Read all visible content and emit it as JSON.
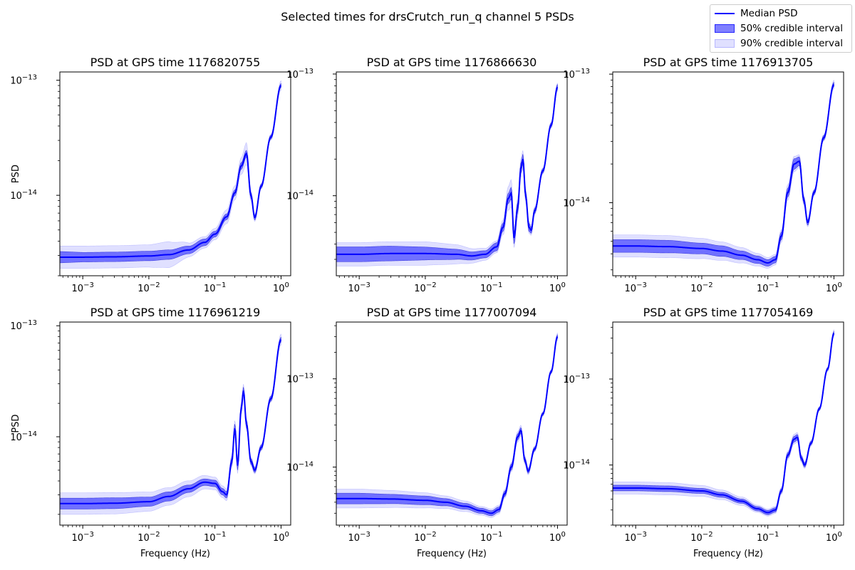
{
  "figure": {
    "suptitle": "Selected times for drsCrutch_run_q channel 5 PSDs"
  },
  "legend": {
    "median_label": "Median PSD",
    "ci50_label": "50% credible interval",
    "ci90_label": "90% credible interval",
    "colors": {
      "median": "#0000ff",
      "ci50": "#0000ff",
      "ci90": "#0000ff"
    }
  },
  "chart_data": [
    {
      "type": "line",
      "title": "PSD at GPS time 1176820755",
      "xlabel": "",
      "ylabel": "PSD",
      "xscale": "log",
      "yscale": "log",
      "xlim": [
        0.00045,
        1.4
      ],
      "ylim": [
        2e-15,
        1.18e-13
      ],
      "xticks": [
        0.001,
        0.01,
        0.1,
        1
      ],
      "xticklabels": [
        "10^-3",
        "10^-2",
        "10^-1",
        "10^0"
      ],
      "yticks": [
        1e-14,
        1e-13
      ],
      "yticklabels": [
        "10^-14",
        "10^-13"
      ],
      "series": [
        {
          "name": "Median PSD",
          "x": [
            0.00045,
            0.001,
            0.003,
            0.01,
            0.02,
            0.04,
            0.07,
            0.1,
            0.15,
            0.2,
            0.25,
            0.3,
            0.35,
            0.4,
            0.5,
            0.7,
            1.0
          ],
          "y": [
            2.9e-15,
            2.9e-15,
            2.92e-15,
            2.97e-15,
            3.05e-15,
            3.35e-15,
            3.9e-15,
            4.6e-15,
            6.5e-15,
            1.05e-14,
            1.8e-14,
            2.3e-14,
            1e-14,
            6.4e-15,
            1.2e-14,
            3.2e-14,
            9e-14
          ]
        }
      ],
      "ci50_factor": [
        1.12,
        1.1,
        1.1,
        1.1,
        1.1,
        1.08,
        1.07,
        1.06,
        1.06,
        1.06,
        1.07,
        1.07,
        1.06,
        1.05,
        1.04,
        1.04,
        1.04
      ],
      "ci90_factor": [
        1.25,
        1.25,
        1.25,
        1.25,
        1.3,
        1.15,
        1.12,
        1.12,
        1.15,
        1.15,
        1.18,
        1.25,
        1.12,
        1.08,
        1.06,
        1.06,
        1.1
      ]
    },
    {
      "type": "line",
      "title": "PSD at GPS time 1176866630",
      "xlabel": "",
      "ylabel": "",
      "xscale": "log",
      "yscale": "log",
      "xlim": [
        0.00045,
        1.4
      ],
      "ylim": [
        2.2e-15,
        1.04e-13
      ],
      "xticks": [
        0.001,
        0.01,
        0.1,
        1
      ],
      "xticklabels": [
        "10^-3",
        "10^-2",
        "10^-1",
        "10^0"
      ],
      "yticks": [
        1e-14,
        1e-13
      ],
      "yticklabels": [
        "10^-14",
        "10^-13"
      ],
      "series": [
        {
          "name": "Median PSD",
          "x": [
            0.00045,
            0.001,
            0.003,
            0.01,
            0.03,
            0.05,
            0.08,
            0.12,
            0.15,
            0.18,
            0.2,
            0.22,
            0.25,
            0.28,
            0.3,
            0.33,
            0.37,
            0.4,
            0.45,
            0.6,
            0.8,
            1.0
          ],
          "y": [
            3.3e-15,
            3.3e-15,
            3.35e-15,
            3.35e-15,
            3.3e-15,
            3.2e-15,
            3.3e-15,
            3.8e-15,
            5.5e-15,
            9.5e-15,
            1.05e-14,
            4.5e-15,
            8e-15,
            1.7e-14,
            2e-14,
            1e-14,
            5.5e-15,
            5.2e-15,
            7.5e-15,
            1.6e-14,
            3.8e-14,
            7.8e-14
          ]
        }
      ],
      "ci50_factor": [
        1.15,
        1.15,
        1.15,
        1.13,
        1.1,
        1.08,
        1.07,
        1.08,
        1.08,
        1.1,
        1.12,
        1.12,
        1.1,
        1.1,
        1.1,
        1.08,
        1.08,
        1.06,
        1.05,
        1.04,
        1.04,
        1.05
      ],
      "ci90_factor": [
        1.25,
        1.25,
        1.25,
        1.25,
        1.2,
        1.15,
        1.12,
        1.12,
        1.15,
        1.25,
        1.3,
        1.2,
        1.2,
        1.2,
        1.18,
        1.15,
        1.12,
        1.1,
        1.08,
        1.06,
        1.06,
        1.08
      ]
    },
    {
      "type": "line",
      "title": "PSD at GPS time 1176913705",
      "xlabel": "",
      "ylabel": "",
      "xscale": "log",
      "yscale": "log",
      "xlim": [
        0.00045,
        1.4
      ],
      "ylim": [
        2.7e-15,
        1.04e-13
      ],
      "xticks": [
        0.001,
        0.01,
        0.1,
        1
      ],
      "xticklabels": [
        "10^-3",
        "10^-2",
        "10^-1",
        "10^0"
      ],
      "yticks": [
        1e-14,
        1e-13
      ],
      "yticklabels": [
        "10^-14",
        "10^-13"
      ],
      "series": [
        {
          "name": "Median PSD",
          "x": [
            0.00045,
            0.001,
            0.003,
            0.01,
            0.02,
            0.04,
            0.07,
            0.1,
            0.13,
            0.16,
            0.2,
            0.25,
            0.3,
            0.35,
            0.4,
            0.5,
            0.7,
            1.0
          ],
          "y": [
            4.6e-15,
            4.6e-15,
            4.55e-15,
            4.4e-15,
            4.2e-15,
            3.9e-15,
            3.6e-15,
            3.4e-15,
            3.6e-15,
            5.5e-15,
            1.2e-14,
            2e-14,
            2.1e-14,
            1.05e-14,
            7e-15,
            1.2e-14,
            3.2e-14,
            8.3e-14
          ]
        }
      ],
      "ci50_factor": [
        1.12,
        1.12,
        1.12,
        1.1,
        1.1,
        1.08,
        1.07,
        1.06,
        1.06,
        1.07,
        1.08,
        1.1,
        1.08,
        1.06,
        1.05,
        1.04,
        1.04,
        1.04
      ],
      "ci90_factor": [
        1.22,
        1.22,
        1.22,
        1.2,
        1.18,
        1.15,
        1.12,
        1.1,
        1.1,
        1.12,
        1.15,
        1.15,
        1.12,
        1.1,
        1.08,
        1.06,
        1.06,
        1.08
      ]
    },
    {
      "type": "line",
      "title": "PSD at GPS time 1176961219",
      "xlabel": "Frequency (Hz)",
      "ylabel": "PSD",
      "xscale": "log",
      "yscale": "log",
      "xlim": [
        0.00045,
        1.4
      ],
      "ylim": [
        1.6e-15,
        1.08e-13
      ],
      "xticks": [
        0.001,
        0.01,
        0.1,
        1
      ],
      "xticklabels": [
        "10^-3",
        "10^-2",
        "10^-1",
        "10^0"
      ],
      "yticks": [
        1e-14,
        1e-13
      ],
      "yticklabels": [
        "10^-14",
        "10^-13"
      ],
      "series": [
        {
          "name": "Median PSD",
          "x": [
            0.00045,
            0.001,
            0.003,
            0.01,
            0.02,
            0.04,
            0.07,
            0.1,
            0.13,
            0.15,
            0.18,
            0.2,
            0.22,
            0.25,
            0.27,
            0.3,
            0.35,
            0.4,
            0.5,
            0.7,
            1.0
          ],
          "y": [
            2.5e-15,
            2.5e-15,
            2.52e-15,
            2.6e-15,
            2.9e-15,
            3.4e-15,
            3.9e-15,
            3.8e-15,
            3.2e-15,
            3e-15,
            6e-15,
            1.2e-14,
            5.5e-15,
            1.8e-14,
            2.6e-14,
            1.3e-14,
            6e-15,
            5e-15,
            8e-15,
            2.2e-14,
            7.5e-14
          ]
        }
      ],
      "ci50_factor": [
        1.12,
        1.12,
        1.12,
        1.1,
        1.1,
        1.08,
        1.07,
        1.07,
        1.07,
        1.07,
        1.08,
        1.1,
        1.1,
        1.08,
        1.08,
        1.08,
        1.06,
        1.05,
        1.05,
        1.05,
        1.05
      ],
      "ci90_factor": [
        1.25,
        1.25,
        1.25,
        1.22,
        1.2,
        1.18,
        1.15,
        1.14,
        1.13,
        1.13,
        1.15,
        1.18,
        1.18,
        1.15,
        1.15,
        1.13,
        1.1,
        1.08,
        1.07,
        1.07,
        1.12
      ]
    },
    {
      "type": "line",
      "title": "PSD at GPS time 1177007094",
      "xlabel": "Frequency (Hz)",
      "ylabel": "",
      "xscale": "log",
      "yscale": "log",
      "xlim": [
        0.00045,
        1.4
      ],
      "ylim": [
        2.2e-15,
        4.4e-13
      ],
      "xticks": [
        0.001,
        0.01,
        0.1,
        1
      ],
      "xticklabels": [
        "10^-3",
        "10^-2",
        "10^-1",
        "10^0"
      ],
      "yticks": [
        1e-14,
        1e-13
      ],
      "yticklabels": [
        "10^-14",
        "10^-13"
      ],
      "series": [
        {
          "name": "Median PSD",
          "x": [
            0.00045,
            0.001,
            0.003,
            0.01,
            0.02,
            0.04,
            0.07,
            0.1,
            0.13,
            0.16,
            0.2,
            0.25,
            0.28,
            0.32,
            0.36,
            0.45,
            0.6,
            0.8,
            1.0
          ],
          "y": [
            4.4e-15,
            4.4e-15,
            4.35e-15,
            4.2e-15,
            4e-15,
            3.6e-15,
            3.2e-15,
            3e-15,
            3.3e-15,
            5e-15,
            1e-14,
            2.2e-14,
            2.6e-14,
            1.2e-14,
            9e-15,
            1.6e-14,
            4e-14,
            1.2e-13,
            3e-13
          ]
        }
      ],
      "ci50_factor": [
        1.15,
        1.15,
        1.13,
        1.12,
        1.1,
        1.08,
        1.07,
        1.07,
        1.07,
        1.07,
        1.08,
        1.08,
        1.08,
        1.07,
        1.06,
        1.05,
        1.04,
        1.04,
        1.05
      ],
      "ci90_factor": [
        1.28,
        1.28,
        1.25,
        1.22,
        1.18,
        1.15,
        1.12,
        1.12,
        1.12,
        1.12,
        1.13,
        1.15,
        1.15,
        1.12,
        1.1,
        1.08,
        1.06,
        1.06,
        1.1
      ]
    },
    {
      "type": "line",
      "title": "PSD at GPS time 1177054169",
      "xlabel": "Frequency (Hz)",
      "ylabel": "",
      "xscale": "log",
      "yscale": "log",
      "xlim": [
        0.00045,
        1.4
      ],
      "ylim": [
        2e-15,
        4.6e-13
      ],
      "xticks": [
        0.001,
        0.01,
        0.1,
        1
      ],
      "xticklabels": [
        "10^-3",
        "10^-2",
        "10^-1",
        "10^0"
      ],
      "yticks": [
        1e-14,
        1e-13
      ],
      "yticklabels": [
        "10^-14",
        "10^-13"
      ],
      "series": [
        {
          "name": "Median PSD",
          "x": [
            0.00045,
            0.001,
            0.003,
            0.01,
            0.02,
            0.04,
            0.07,
            0.1,
            0.13,
            0.16,
            0.2,
            0.25,
            0.28,
            0.32,
            0.36,
            0.45,
            0.6,
            0.8,
            1.0
          ],
          "y": [
            5.4e-15,
            5.4e-15,
            5.3e-15,
            5e-15,
            4.5e-15,
            3.8e-15,
            3.1e-15,
            2.8e-15,
            3e-15,
            5e-15,
            1.3e-14,
            2e-14,
            2.1e-14,
            1.2e-14,
            1e-14,
            1.8e-14,
            4.5e-14,
            1.3e-13,
            3.4e-13
          ]
        }
      ],
      "ci50_factor": [
        1.08,
        1.08,
        1.08,
        1.07,
        1.07,
        1.06,
        1.06,
        1.06,
        1.06,
        1.06,
        1.07,
        1.08,
        1.08,
        1.07,
        1.06,
        1.05,
        1.04,
        1.04,
        1.05
      ],
      "ci90_factor": [
        1.18,
        1.18,
        1.18,
        1.16,
        1.14,
        1.12,
        1.1,
        1.1,
        1.1,
        1.1,
        1.12,
        1.14,
        1.14,
        1.12,
        1.1,
        1.08,
        1.06,
        1.06,
        1.1
      ]
    }
  ]
}
